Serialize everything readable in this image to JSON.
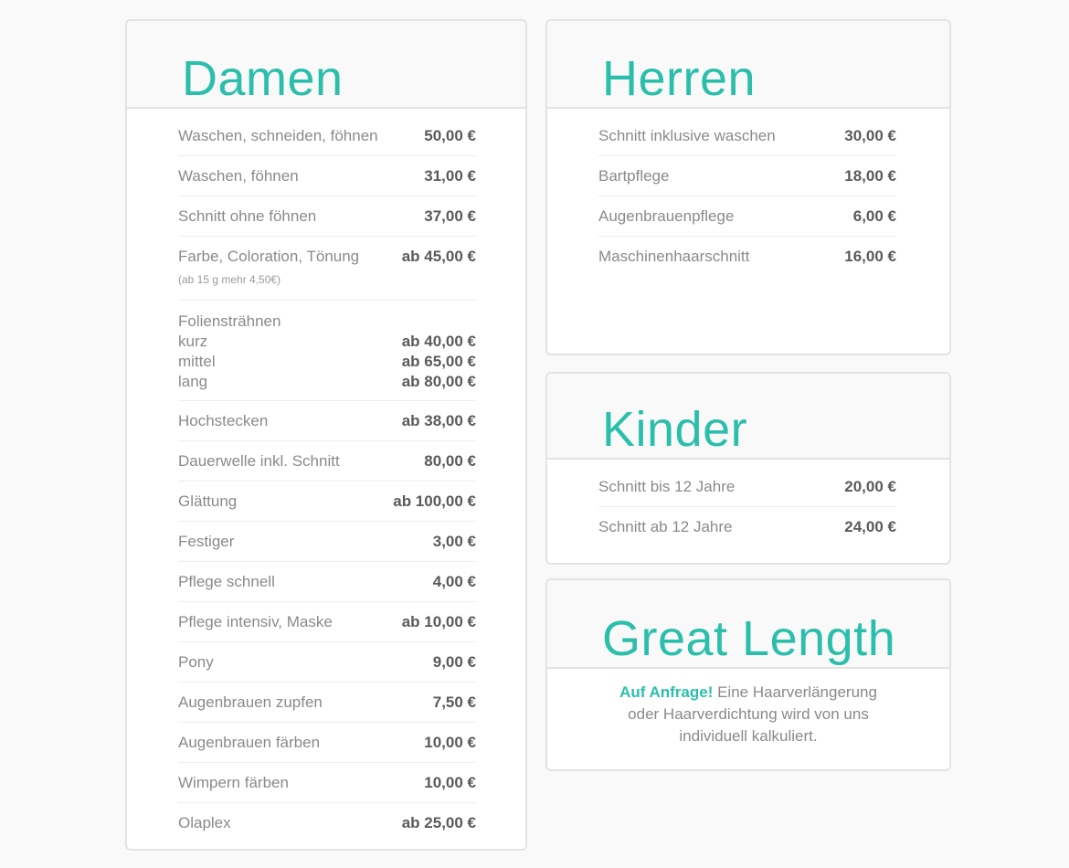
{
  "accent_color": "#2bbfab",
  "damen": {
    "title": "Damen",
    "items": [
      {
        "name": "Waschen, schneiden, föhnen",
        "price": "50,00 €"
      },
      {
        "name": "Waschen, föhnen",
        "price": "31,00 €"
      },
      {
        "name": "Schnitt ohne föhnen",
        "price": "37,00 €"
      },
      {
        "name": "Farbe, Coloration, Tönung",
        "price": "ab 45,00 €",
        "note": "(ab 15 g mehr 4,50€)"
      },
      {
        "name": "Foliensträhnen",
        "sub": [
          {
            "name": "kurz",
            "price": "ab 40,00 €"
          },
          {
            "name": "mittel",
            "price": "ab 65,00 €"
          },
          {
            "name": "lang",
            "price": "ab 80,00 €"
          }
        ]
      },
      {
        "name": "Hochstecken",
        "price": "ab 38,00 €"
      },
      {
        "name": "Dauerwelle inkl. Schnitt",
        "price": "80,00 €"
      },
      {
        "name": "Glättung",
        "price": "ab 100,00 €"
      },
      {
        "name": "Festiger",
        "price": "3,00 €"
      },
      {
        "name": "Pflege schnell",
        "price": "4,00 €"
      },
      {
        "name": "Pflege intensiv, Maske",
        "price": "ab 10,00 €"
      },
      {
        "name": "Pony",
        "price": "9,00 €"
      },
      {
        "name": "Augenbrauen zupfen",
        "price": "7,50 €"
      },
      {
        "name": "Augenbrauen färben",
        "price": "10,00 €"
      },
      {
        "name": "Wimpern färben",
        "price": "10,00 €"
      },
      {
        "name": "Olaplex",
        "price": "ab 25,00 €"
      }
    ]
  },
  "herren": {
    "title": "Herren",
    "items": [
      {
        "name": "Schnitt inklusive waschen",
        "price": "30,00 €"
      },
      {
        "name": "Bartpflege",
        "price": "18,00 €"
      },
      {
        "name": "Augenbrauenpflege",
        "price": "6,00 €"
      },
      {
        "name": "Maschinenhaarschnitt",
        "price": "16,00 €"
      }
    ]
  },
  "kinder": {
    "title": "Kinder",
    "items": [
      {
        "name": "Schnitt bis 12 Jahre",
        "price": "20,00 €"
      },
      {
        "name": "Schnitt ab 12 Jahre",
        "price": "24,00 €"
      }
    ]
  },
  "great_length": {
    "title": "Great Length",
    "highlight": "Auf Anfrage!",
    "text": " Eine Haarverlängerung oder Haarverdichtung wird von uns individuell kalkuliert."
  }
}
